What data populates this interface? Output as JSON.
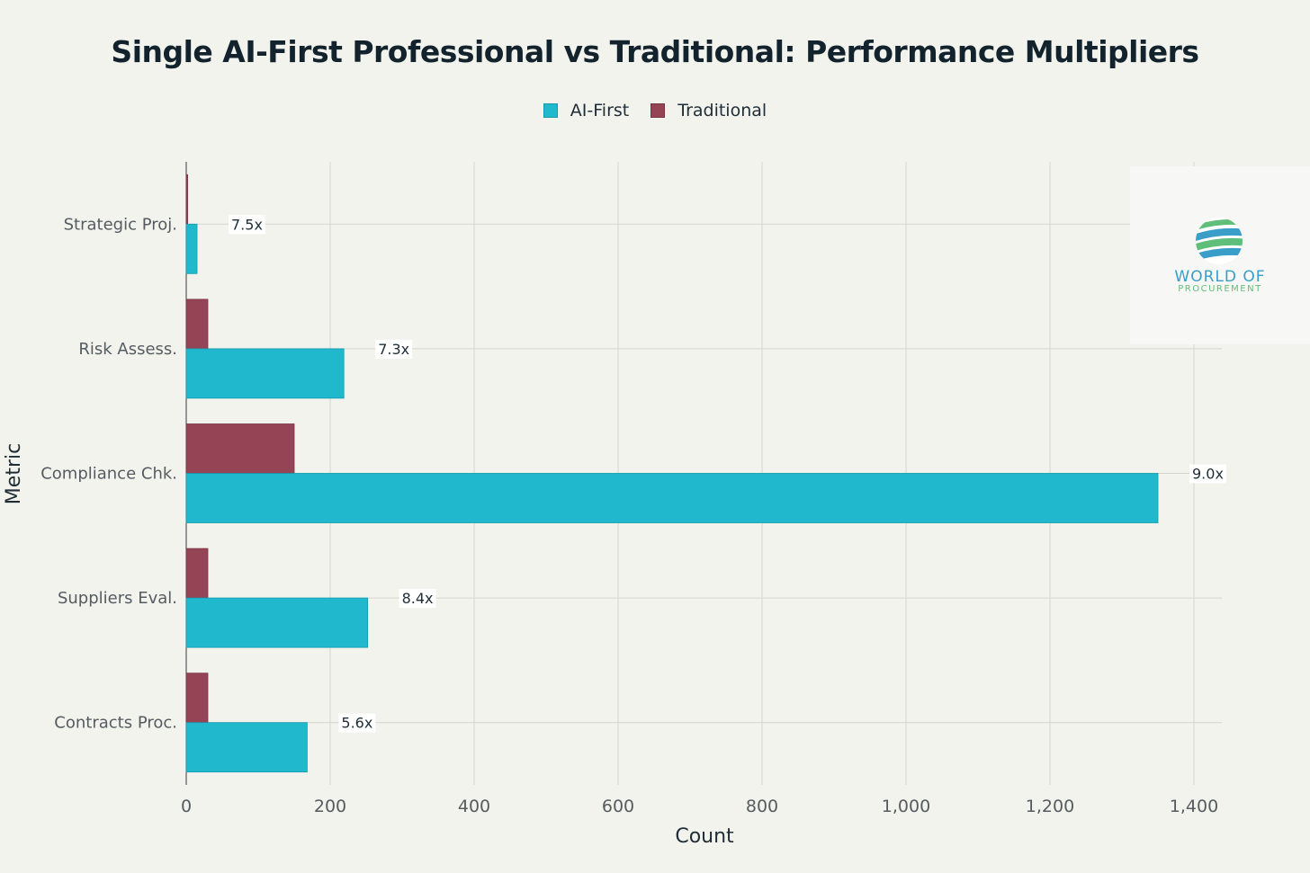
{
  "chart_data": {
    "type": "bar",
    "orientation": "horizontal",
    "title": "Single AI-First Professional vs Traditional: Performance Multipliers",
    "xlabel": "Count",
    "ylabel": "Metric",
    "xlim": [
      0,
      1400
    ],
    "xticks": [
      0,
      200,
      400,
      600,
      800,
      1000,
      1200,
      1400
    ],
    "xtick_labels": [
      "0",
      "200",
      "400",
      "600",
      "800",
      "1,000",
      "1,200",
      "1,400"
    ],
    "grid": true,
    "legend": "top-center",
    "categories": [
      "Strategic Proj.",
      "Risk Assess.",
      "Compliance Chk.",
      "Suppliers Eval.",
      "Contracts Proc."
    ],
    "series": [
      {
        "name": "AI-First",
        "color": "#1fb8cd",
        "values": [
          15,
          219,
          1350,
          252,
          168
        ]
      },
      {
        "name": "Traditional",
        "color": "#944454",
        "values": [
          2,
          30,
          150,
          30,
          30
        ]
      }
    ],
    "annotations": [
      "7.5x",
      "7.3x",
      "9.0x",
      "8.4x",
      "5.6x"
    ]
  },
  "logo": {
    "line1": "WORLD OF",
    "line2": "PROCUREMENT"
  }
}
